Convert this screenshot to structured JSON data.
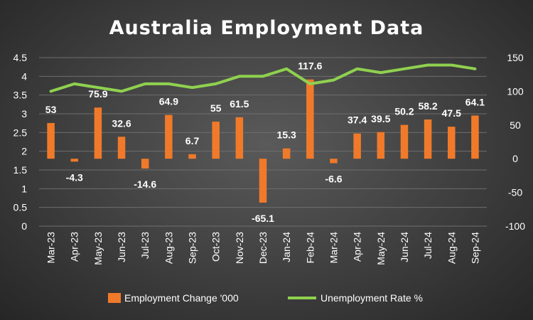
{
  "chart_data": {
    "type": "bar",
    "title": "Australia Employment Data",
    "categories": [
      "Mar-23",
      "Apr-23",
      "May-23",
      "Jun-23",
      "Jul-23",
      "Aug-23",
      "Sep-23",
      "Oct-23",
      "Nov-23",
      "Dec-23",
      "Jan-24",
      "Feb-24",
      "Mar-24",
      "Apr-24",
      "May-24",
      "Jun-24",
      "Jul-24",
      "Aug-24",
      "Sep-24"
    ],
    "series": [
      {
        "name": "Employment Change '000",
        "type": "bar",
        "axis": "right",
        "color": "#f07a2a",
        "values": [
          53,
          -4.3,
          75.9,
          32.6,
          -14.6,
          64.9,
          6.7,
          55,
          61.5,
          -65.1,
          15.3,
          117.6,
          -6.6,
          37.4,
          39.5,
          50.2,
          58.2,
          47.5,
          64.1
        ],
        "labels": [
          "53",
          "-4.3",
          "75.9",
          "32.6",
          "-14.6",
          "64.9",
          "6.7",
          "55",
          "61.5",
          "-65.1",
          "15.3",
          "117.6",
          "-6.6",
          "37.4",
          "39.5",
          "50.2",
          "58.2",
          "47.5",
          "64.1"
        ]
      },
      {
        "name": "Unemployment Rate %",
        "type": "line",
        "axis": "left",
        "color": "#8fd14f",
        "values": [
          3.6,
          3.8,
          3.7,
          3.6,
          3.8,
          3.8,
          3.7,
          3.8,
          4.0,
          4.0,
          4.2,
          3.8,
          3.9,
          4.2,
          4.1,
          4.2,
          4.3,
          4.3,
          4.2
        ]
      }
    ],
    "y_left": {
      "min": 0,
      "max": 4.5,
      "step": 0.5,
      "ticks": [
        "0",
        "0.5",
        "1",
        "1.5",
        "2",
        "2.5",
        "3",
        "3.5",
        "4",
        "4.5"
      ]
    },
    "y_right": {
      "min": -100,
      "max": 150,
      "step": 50,
      "ticks": [
        "-100",
        "-50",
        "0",
        "50",
        "100",
        "150"
      ]
    },
    "grid": true,
    "legend_position": "bottom"
  }
}
